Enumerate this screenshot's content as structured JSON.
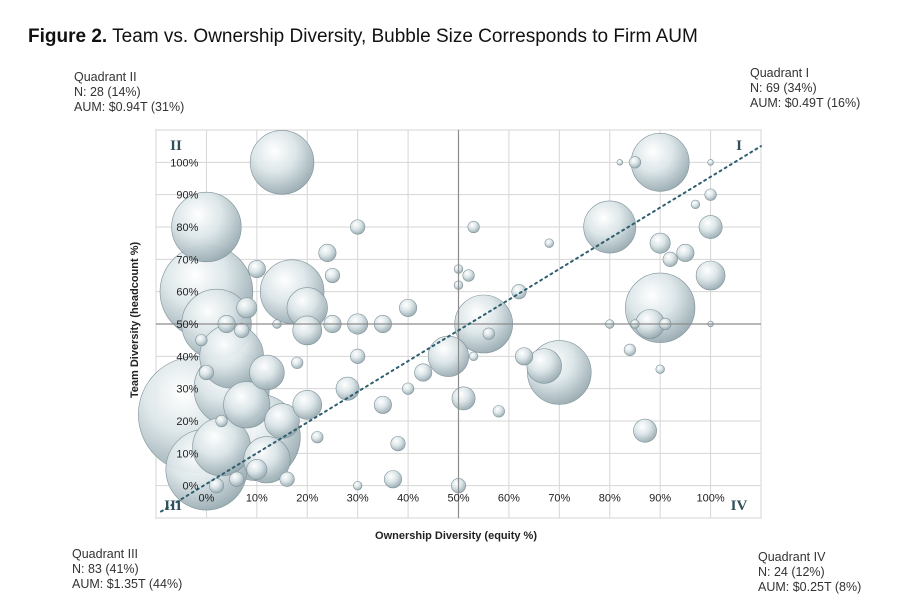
{
  "figure": {
    "label": "Figure 2.",
    "title": "Team vs. Ownership Diversity, Bubble Size Corresponds to Firm AUM"
  },
  "quadrants": {
    "q1": {
      "name": "Quadrant I",
      "n": "N: 69 (34%)",
      "aum": "AUM: $0.49T (16%)",
      "roman": "I"
    },
    "q2": {
      "name": "Quadrant II",
      "n": "N: 28 (14%)",
      "aum": "AUM: $0.94T (31%)",
      "roman": "II"
    },
    "q3": {
      "name": "Quadrant III",
      "n": "N: 83 (41%)",
      "aum": "AUM: $1.35T (44%)",
      "roman": "III"
    },
    "q4": {
      "name": "Quadrant IV",
      "n": "N: 24 (12%)",
      "aum": "AUM: $0.25T (8%)",
      "roman": "IV"
    }
  },
  "chart_data": {
    "type": "scatter",
    "xlabel": "Ownership Diversity (equity %)",
    "ylabel": "Team Diversity (headcount %)",
    "xlim": [
      -10,
      110
    ],
    "ylim": [
      -10,
      110
    ],
    "x_ticks": [
      "0%",
      "10%",
      "20%",
      "30%",
      "40%",
      "50%",
      "60%",
      "70%",
      "80%",
      "90%",
      "100%"
    ],
    "y_ticks": [
      "0%",
      "10%",
      "20%",
      "30%",
      "40%",
      "50%",
      "60%",
      "70%",
      "80%",
      "90%",
      "100%"
    ],
    "dividers": {
      "x": 50,
      "y": 50
    },
    "trendline": {
      "from": [
        -9,
        -8
      ],
      "to": [
        110,
        105
      ]
    },
    "bubble_color": "#b9c9cf",
    "trend_color": "#2f5f6e",
    "points": [
      {
        "x": 0,
        "y": 5,
        "s": 28
      },
      {
        "x": -2,
        "y": 22,
        "s": 40
      },
      {
        "x": 0,
        "y": 60,
        "s": 32
      },
      {
        "x": 2,
        "y": 50,
        "s": 24
      },
      {
        "x": 0,
        "y": 80,
        "s": 24
      },
      {
        "x": 5,
        "y": 30,
        "s": 26
      },
      {
        "x": 10,
        "y": 15,
        "s": 30
      },
      {
        "x": 15,
        "y": 100,
        "s": 22
      },
      {
        "x": 17,
        "y": 60,
        "s": 22
      },
      {
        "x": 5,
        "y": 40,
        "s": 22
      },
      {
        "x": 3,
        "y": 12,
        "s": 20
      },
      {
        "x": 12,
        "y": 8,
        "s": 16
      },
      {
        "x": 8,
        "y": 25,
        "s": 16
      },
      {
        "x": 12,
        "y": 35,
        "s": 12
      },
      {
        "x": 20,
        "y": 25,
        "s": 10
      },
      {
        "x": 20,
        "y": 55,
        "s": 14
      },
      {
        "x": 20,
        "y": 48,
        "s": 10
      },
      {
        "x": 15,
        "y": 20,
        "s": 12
      },
      {
        "x": 25,
        "y": 50,
        "s": 6
      },
      {
        "x": 28,
        "y": 30,
        "s": 8
      },
      {
        "x": 30,
        "y": 50,
        "s": 7
      },
      {
        "x": 35,
        "y": 50,
        "s": 6
      },
      {
        "x": 30,
        "y": 40,
        "s": 5
      },
      {
        "x": 35,
        "y": 25,
        "s": 6
      },
      {
        "x": 30,
        "y": 80,
        "s": 5
      },
      {
        "x": 24,
        "y": 72,
        "s": 6
      },
      {
        "x": 25,
        "y": 65,
        "s": 5
      },
      {
        "x": 10,
        "y": 67,
        "s": 6
      },
      {
        "x": 8,
        "y": 55,
        "s": 7
      },
      {
        "x": 4,
        "y": 50,
        "s": 6
      },
      {
        "x": 0,
        "y": 35,
        "s": 5
      },
      {
        "x": 3,
        "y": 20,
        "s": 4
      },
      {
        "x": 10,
        "y": 5,
        "s": 7
      },
      {
        "x": 16,
        "y": 2,
        "s": 5
      },
      {
        "x": 2,
        "y": 0,
        "s": 5
      },
      {
        "x": 6,
        "y": 2,
        "s": 5
      },
      {
        "x": 37,
        "y": 2,
        "s": 6
      },
      {
        "x": 50,
        "y": 0,
        "s": 5
      },
      {
        "x": 38,
        "y": 13,
        "s": 5
      },
      {
        "x": 30,
        "y": 0,
        "s": 3
      },
      {
        "x": 40,
        "y": 55,
        "s": 6
      },
      {
        "x": 43,
        "y": 35,
        "s": 6
      },
      {
        "x": 40,
        "y": 30,
        "s": 4
      },
      {
        "x": 48,
        "y": 40,
        "s": 14
      },
      {
        "x": 51,
        "y": 27,
        "s": 8
      },
      {
        "x": 55,
        "y": 50,
        "s": 20
      },
      {
        "x": 70,
        "y": 35,
        "s": 22
      },
      {
        "x": 67,
        "y": 37,
        "s": 12
      },
      {
        "x": 63,
        "y": 40,
        "s": 6
      },
      {
        "x": 58,
        "y": 23,
        "s": 4
      },
      {
        "x": 53,
        "y": 40,
        "s": 3
      },
      {
        "x": 52,
        "y": 65,
        "s": 4
      },
      {
        "x": 53,
        "y": 80,
        "s": 4
      },
      {
        "x": 62,
        "y": 60,
        "s": 5
      },
      {
        "x": 50,
        "y": 67,
        "s": 3
      },
      {
        "x": 50,
        "y": 62,
        "s": 3
      },
      {
        "x": 56,
        "y": 47,
        "s": 4
      },
      {
        "x": 90,
        "y": 100,
        "s": 20
      },
      {
        "x": 80,
        "y": 80,
        "s": 18
      },
      {
        "x": 90,
        "y": 55,
        "s": 24
      },
      {
        "x": 100,
        "y": 65,
        "s": 10
      },
      {
        "x": 100,
        "y": 80,
        "s": 8
      },
      {
        "x": 88,
        "y": 50,
        "s": 10
      },
      {
        "x": 95,
        "y": 72,
        "s": 6
      },
      {
        "x": 90,
        "y": 75,
        "s": 7
      },
      {
        "x": 92,
        "y": 70,
        "s": 5
      },
      {
        "x": 85,
        "y": 100,
        "s": 4
      },
      {
        "x": 100,
        "y": 90,
        "s": 4
      },
      {
        "x": 97,
        "y": 87,
        "s": 3
      },
      {
        "x": 91,
        "y": 50,
        "s": 4
      },
      {
        "x": 85,
        "y": 50,
        "s": 3
      },
      {
        "x": 80,
        "y": 50,
        "s": 3
      },
      {
        "x": 87,
        "y": 17,
        "s": 8
      },
      {
        "x": 84,
        "y": 42,
        "s": 4
      },
      {
        "x": 90,
        "y": 36,
        "s": 3
      },
      {
        "x": 68,
        "y": 75,
        "s": 3
      },
      {
        "x": 82,
        "y": 100,
        "s": 2
      },
      {
        "x": 100,
        "y": 100,
        "s": 2
      },
      {
        "x": 100,
        "y": 50,
        "s": 2
      },
      {
        "x": 14,
        "y": 50,
        "s": 3
      },
      {
        "x": 18,
        "y": 38,
        "s": 4
      },
      {
        "x": 22,
        "y": 15,
        "s": 4
      },
      {
        "x": 7,
        "y": 48,
        "s": 5
      },
      {
        "x": -1,
        "y": 45,
        "s": 4
      }
    ]
  }
}
